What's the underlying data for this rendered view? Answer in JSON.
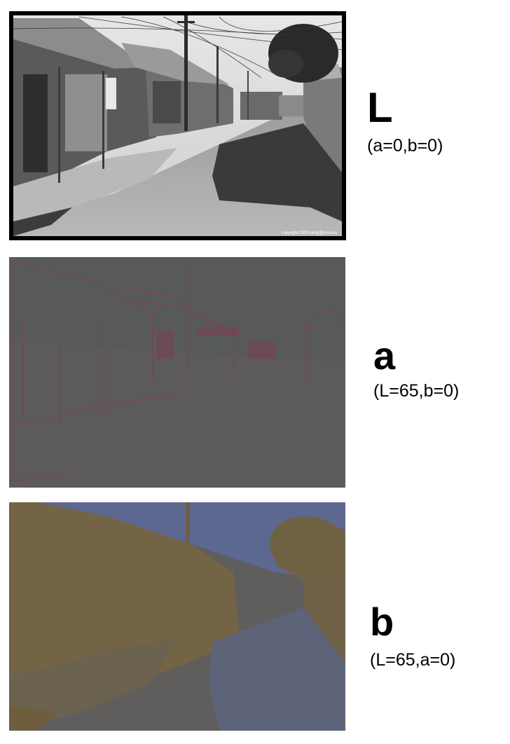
{
  "figure": {
    "panels": [
      {
        "id": "L",
        "channel_label": "L",
        "condition_label": "(a=0,b=0)",
        "watermark": "copyright 2000 philg@mit.edu",
        "image_description": "grayscale lightness channel of a sunlit alley photo"
      },
      {
        "id": "a",
        "channel_label": "a",
        "condition_label": "(L=65,b=0)",
        "image_description": "a-channel only rendering, grayish with faint red edges"
      },
      {
        "id": "b",
        "channel_label": "b",
        "condition_label": "(L=65,a=0)",
        "image_description": "b-channel only rendering, blue sky and yellow-brown buildings"
      }
    ]
  },
  "colors": {
    "a_panel_base": "#5c5a5c",
    "a_panel_edge": "#8a3a52",
    "b_panel_base": "#5f5e5d",
    "b_panel_blue": "#5c6890",
    "b_panel_yellow": "#7a6640"
  }
}
